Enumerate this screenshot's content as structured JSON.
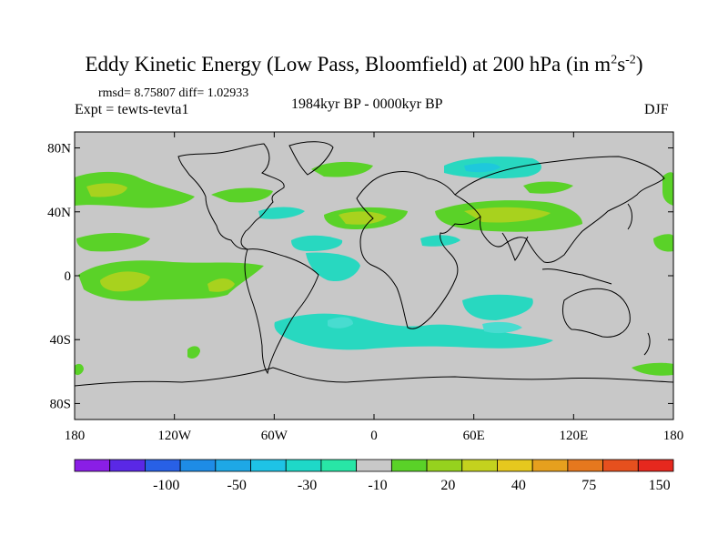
{
  "title_main": "Eddy Kinetic Energy (Low Pass, Bloomfield) at 200 hPa (in m",
  "title_sup1": "2",
  "title_mid": "s",
  "title_sup2": "-2",
  "title_end": ")",
  "stats": "rmsd= 8.75807 diff= 1.02933",
  "experiment": "Expt = tewts-tevta1",
  "period": "1984kyr BP - 0000kyr BP",
  "season": "DJF",
  "map": {
    "lon_range": [
      -180,
      180
    ],
    "lat_range": [
      -90,
      90
    ],
    "y_ticks": [
      {
        "lat": 80,
        "label": "80N"
      },
      {
        "lat": 40,
        "label": "40N"
      },
      {
        "lat": 0,
        "label": "0"
      },
      {
        "lat": -40,
        "label": "40S"
      },
      {
        "lat": -80,
        "label": "80S"
      }
    ],
    "x_ticks": [
      {
        "lon": -180,
        "label": "180"
      },
      {
        "lon": -120,
        "label": "120W"
      },
      {
        "lon": -60,
        "label": "60W"
      },
      {
        "lon": 0,
        "label": "0"
      },
      {
        "lon": 60,
        "label": "60E"
      },
      {
        "lon": 120,
        "label": "120E"
      },
      {
        "lon": 180,
        "label": "180"
      }
    ],
    "background_color": "#c8c8c8"
  },
  "colorbar": {
    "colors": [
      "#8a1ee6",
      "#5a28e6",
      "#2860e6",
      "#1e8ce6",
      "#1ea8e6",
      "#1ec3e6",
      "#1ed8c8",
      "#28e6a6",
      "#c8c8c8",
      "#5ad228",
      "#96d21e",
      "#c4d21e",
      "#e6c81e",
      "#e6a01e",
      "#e6781e",
      "#e6501e",
      "#e6281e"
    ],
    "labels": [
      {
        "after_box": 2,
        "label": "-100"
      },
      {
        "after_box": 4,
        "label": "-50"
      },
      {
        "after_box": 6,
        "label": "-30"
      },
      {
        "after_box": 8,
        "label": "-10"
      },
      {
        "after_box": 10,
        "label": "20"
      },
      {
        "after_box": 12,
        "label": "40"
      },
      {
        "after_box": 14,
        "label": "75"
      },
      {
        "after_box": 16,
        "label": "150"
      }
    ]
  },
  "field_colors": {
    "cyan": "#28d8c0",
    "light_cyan": "#48dcd0",
    "deep_cyan": "#1ec8dc",
    "green": "#5ad228",
    "yellowgreen": "#a8d21e",
    "yellow": "#c8d21e"
  }
}
